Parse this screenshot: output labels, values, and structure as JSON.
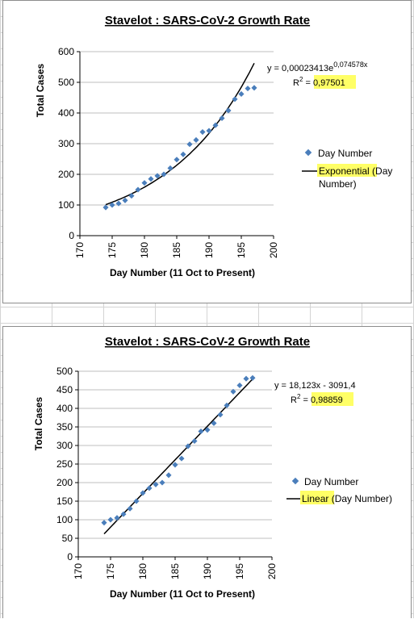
{
  "chart_data": [
    {
      "type": "scatter",
      "title": "Stavelot : SARS-CoV-2 Growth Rate",
      "xlabel": "Day Number (11 Oct to Present)",
      "ylabel": "Total Cases",
      "xlim": [
        170,
        200
      ],
      "ylim": [
        0,
        600
      ],
      "xticks": [
        170,
        175,
        180,
        185,
        190,
        195,
        200
      ],
      "yticks": [
        0,
        100,
        200,
        300,
        400,
        500,
        600
      ],
      "grid": true,
      "legend_position": "right",
      "series": [
        {
          "name": "Day Number",
          "x": [
            174,
            175,
            176,
            177,
            178,
            179,
            180,
            181,
            182,
            183,
            184,
            185,
            186,
            187,
            188,
            189,
            190,
            191,
            192,
            193,
            194,
            195,
            196,
            197
          ],
          "y": [
            92,
            100,
            105,
            115,
            130,
            150,
            172,
            185,
            195,
            200,
            220,
            248,
            265,
            298,
            312,
            338,
            342,
            360,
            383,
            408,
            445,
            462,
            480,
            482
          ]
        }
      ],
      "trendline": {
        "type": "exponential",
        "legend_prefix": "Exponential",
        "legend_suffix": " (Day Number)",
        "equation_prefix": "y = 0,00023413e",
        "equation_exponent": "0,074578x",
        "r2_label": "R",
        "r2_sup": "2",
        "r2_eq": " = ",
        "r2_value": "0,97501",
        "a": 0.00023413,
        "b": 0.074578,
        "x_range": [
          174,
          197
        ]
      },
      "colors": {
        "marker": "#4a7ebb",
        "trend": "#000000",
        "highlight": "#ffff66",
        "grid": "#bfbfbf"
      }
    },
    {
      "type": "scatter",
      "title": "Stavelot : SARS-CoV-2 Growth Rate",
      "xlabel": "Day Number (11 Oct to Present)",
      "ylabel": "Total Cases",
      "xlim": [
        170,
        200
      ],
      "ylim": [
        0,
        500
      ],
      "xticks": [
        170,
        175,
        180,
        185,
        190,
        195,
        200
      ],
      "yticks": [
        0,
        50,
        100,
        150,
        200,
        250,
        300,
        350,
        400,
        450,
        500
      ],
      "grid": true,
      "legend_position": "right",
      "series": [
        {
          "name": "Day Number",
          "x": [
            174,
            175,
            176,
            177,
            178,
            179,
            180,
            181,
            182,
            183,
            184,
            185,
            186,
            187,
            188,
            189,
            190,
            191,
            192,
            193,
            194,
            195,
            196,
            197
          ],
          "y": [
            92,
            100,
            105,
            115,
            130,
            150,
            172,
            185,
            195,
            200,
            220,
            248,
            265,
            298,
            312,
            338,
            342,
            360,
            383,
            408,
            445,
            462,
            480,
            482
          ]
        }
      ],
      "trendline": {
        "type": "linear",
        "legend_prefix": "Linear",
        "legend_suffix": " (Day Number)",
        "equation_text": "y = 18,123x - 3091,4",
        "r2_label": "R",
        "r2_sup": "2",
        "r2_eq": " = ",
        "r2_value": "0,98859",
        "slope": 18.123,
        "intercept": -3091.4,
        "x_range": [
          174,
          197
        ]
      },
      "colors": {
        "marker": "#4a7ebb",
        "trend": "#000000",
        "highlight": "#ffff66",
        "grid": "#bfbfbf"
      }
    }
  ]
}
